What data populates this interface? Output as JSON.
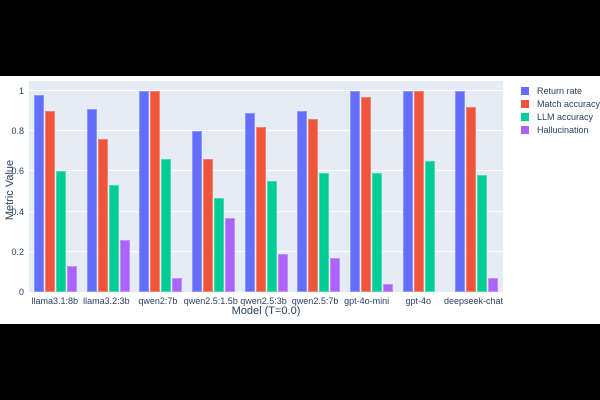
{
  "page": {
    "background": "#000000",
    "figure_background": "#ffffff"
  },
  "chart_data": {
    "type": "bar",
    "title": "",
    "xlabel": "Model (T=0.0)",
    "ylabel": "Metric Value",
    "categories": [
      "llama3.1:8b",
      "llama3.2:3b",
      "qwen2:7b",
      "qwen2.5:1.5b",
      "qwen2.5:3b",
      "qwen2.5:7b",
      "gpt-4o-mini",
      "gpt-4o",
      "deepseek-chat"
    ],
    "series": [
      {
        "name": "Return rate",
        "color": "#636EFA",
        "values": [
          0.98,
          0.91,
          1.0,
          0.8,
          0.89,
          0.9,
          1.0,
          1.0,
          1.0
        ]
      },
      {
        "name": "Match accuracy",
        "color": "#EF553B",
        "values": [
          0.9,
          0.76,
          1.0,
          0.66,
          0.82,
          0.86,
          0.97,
          1.0,
          0.92
        ]
      },
      {
        "name": "LLM accuracy",
        "color": "#00CC96",
        "values": [
          0.6,
          0.53,
          0.66,
          0.47,
          0.55,
          0.59,
          0.59,
          0.65,
          0.58
        ]
      },
      {
        "name": "Hallucination",
        "color": "#AB63FA",
        "values": [
          0.13,
          0.26,
          0.07,
          0.37,
          0.19,
          0.17,
          0.04,
          0.0,
          0.07
        ]
      }
    ],
    "yticks": [
      0,
      0.2,
      0.4,
      0.6,
      0.8,
      1
    ],
    "ylim": [
      0,
      1.05
    ],
    "grid": true,
    "legend_position": "right",
    "plot_bgcolor": "#E5ECF6",
    "gridline_color": "#ffffff",
    "font_color": "#2a3f5f"
  }
}
